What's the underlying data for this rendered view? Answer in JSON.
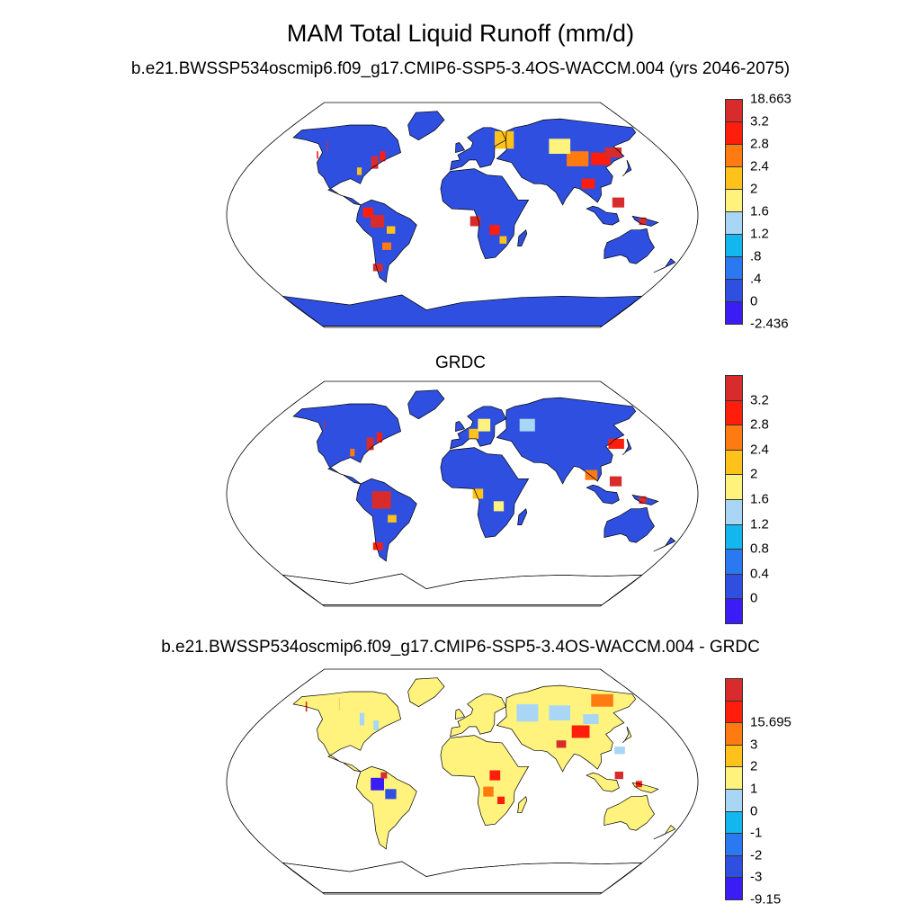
{
  "title": "MAM Total Liquid Runoff (mm/d)",
  "panels": [
    {
      "subtitle": "b.e21.BWSSP534oscmip6.f09_g17.CMIP6-SSP5-3.4OS-WACCM.004 (yrs 2046-2075)",
      "colors": [
        "#3a1cf5",
        "#2f4fe0",
        "#2b79f0",
        "#14b6f0",
        "#a9d6f5",
        "#fff37e",
        "#ffc21a",
        "#ff7a10",
        "#ff1d0c",
        "#d82c2c"
      ],
      "labels": [
        "-2.436",
        "0",
        ".4",
        ".8",
        "1.2",
        "1.6",
        "2",
        "2.4",
        "2.8",
        "3.2",
        "18.663"
      ],
      "ocean_fill": "#ffffff",
      "land_base": "#2f4fe0",
      "map_scheme": "runoff"
    },
    {
      "subtitle": "GRDC",
      "colors": [
        "#3a1cf5",
        "#2f4fe0",
        "#2b79f0",
        "#14b6f0",
        "#a9d6f5",
        "#fff37e",
        "#ffc21a",
        "#ff7a10",
        "#ff1d0c",
        "#d82c2c"
      ],
      "labels": [
        "0",
        "0.4",
        "0.8",
        "1.2",
        "1.6",
        "2",
        "2.4",
        "2.8",
        "3.2"
      ],
      "ocean_fill": "#ffffff",
      "land_base": "#2f4fe0",
      "map_scheme": "grdc"
    },
    {
      "subtitle": "b.e21.BWSSP534oscmip6.f09_g17.CMIP6-SSP5-3.4OS-WACCM.004 - GRDC",
      "colors": [
        "#3a1cf5",
        "#2f4fe0",
        "#2b79f0",
        "#14b6f0",
        "#a9d6f5",
        "#fff37e",
        "#ffc21a",
        "#ff7a10",
        "#ff1d0c",
        "#d82c2c"
      ],
      "labels": [
        "-9.15",
        "-3",
        "-2",
        "-1",
        "0",
        "1",
        "2",
        "3",
        "15.695"
      ],
      "ocean_fill": "#ffffff",
      "land_base": "#fff37e",
      "map_scheme": "diff"
    }
  ]
}
